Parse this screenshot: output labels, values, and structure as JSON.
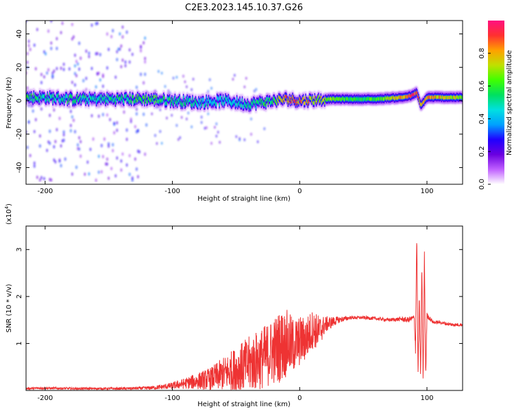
{
  "title": "C2E3.2023.145.10.37.G26",
  "colorbar": {
    "label": "Normalized spectral amplitude",
    "ticks": [
      "0.0",
      "0.2",
      "0.4",
      "0.6",
      "0.8"
    ],
    "tick_values": [
      0.0,
      0.2,
      0.4,
      0.6,
      0.8
    ],
    "range": [
      0,
      1
    ],
    "colormap": [
      "#ffffff",
      "#c060ff",
      "#6a00e0",
      "#2000ff",
      "#00a0ff",
      "#00e0e0",
      "#00e060",
      "#40ff00",
      "#c0e000",
      "#ffa000",
      "#ff3030",
      "#ff1080"
    ]
  },
  "chart_data": [
    {
      "type": "heatmap",
      "xlabel": "Height of straight line (km)",
      "ylabel": "Frequency (Hz)",
      "xlim": [
        -215,
        128
      ],
      "ylim": [
        -50,
        48
      ],
      "xticks": [
        -200,
        -100,
        0,
        100
      ],
      "xtick_labels": [
        "-200",
        "-100",
        "0",
        "100"
      ],
      "yticks": [
        -40,
        -20,
        0,
        20,
        40
      ],
      "ytick_labels": [
        "-40",
        "-20",
        "0",
        "20",
        "40"
      ],
      "grid": false,
      "ridge": {
        "x": [
          -215,
          -200,
          -180,
          -160,
          -140,
          -120,
          -100,
          -80,
          -60,
          -40,
          -20,
          -10,
          0,
          20,
          40,
          60,
          80,
          88,
          92,
          95,
          100,
          128
        ],
        "center_hz": [
          2,
          2,
          1,
          1,
          1,
          1,
          0,
          -1,
          0,
          -2,
          0,
          1,
          0,
          1,
          1,
          1,
          2,
          3,
          5,
          -3,
          2,
          2
        ],
        "amplitude": [
          0.6,
          0.5,
          0.55,
          0.5,
          0.55,
          0.6,
          0.55,
          0.5,
          0.45,
          0.5,
          0.6,
          0.9,
          0.85,
          0.7,
          0.6,
          0.6,
          0.85,
          0.95,
          0.9,
          0.8,
          0.85,
          0.7
        ]
      }
    },
    {
      "type": "line",
      "xlabel": "Height of straight line (km)",
      "ylabel": "SNR (10 * v/v)",
      "y_multiplier": "(x10",
      "y_multiplier_exp": "4",
      "y_multiplier_close": ")",
      "xlim": [
        -215,
        128
      ],
      "ylim": [
        0,
        3.5
      ],
      "xticks": [
        -200,
        -100,
        0,
        100
      ],
      "xtick_labels": [
        "-200",
        "-100",
        "0",
        "100"
      ],
      "yticks": [
        1,
        2,
        3
      ],
      "ytick_labels": [
        "1",
        "2",
        "3"
      ],
      "grid": false,
      "series": [
        {
          "color": "#ee3333",
          "x": [
            -215,
            -200,
            -180,
            -160,
            -140,
            -120,
            -110,
            -100,
            -90,
            -80,
            -70,
            -60,
            -50,
            -40,
            -30,
            -20,
            -15,
            -10,
            -5,
            0,
            5,
            10,
            15,
            20,
            30,
            40,
            50,
            60,
            70,
            80,
            85,
            90,
            91,
            92,
            93,
            94,
            95,
            96,
            97,
            98,
            99,
            100,
            105,
            110,
            115,
            120,
            128
          ],
          "y": [
            0.04,
            0.05,
            0.04,
            0.04,
            0.04,
            0.05,
            0.07,
            0.1,
            0.15,
            0.2,
            0.25,
            0.35,
            0.45,
            0.55,
            0.68,
            0.85,
            0.95,
            1.0,
            0.95,
            1.05,
            1.1,
            1.3,
            1.25,
            1.4,
            1.5,
            1.55,
            1.55,
            1.53,
            1.5,
            1.52,
            1.5,
            1.55,
            0.9,
            3.4,
            0.3,
            2.0,
            0.2,
            2.7,
            0.1,
            2.9,
            0.3,
            1.6,
            1.45,
            1.45,
            1.42,
            1.4,
            1.4
          ],
          "noise": [
            0.02,
            0.02,
            0.02,
            0.02,
            0.02,
            0.03,
            0.04,
            0.06,
            0.1,
            0.15,
            0.2,
            0.3,
            0.4,
            0.5,
            0.55,
            0.6,
            0.65,
            0.6,
            0.5,
            0.45,
            0.4,
            0.35,
            0.3,
            0.15,
            0.06,
            0.03,
            0.03,
            0.03,
            0.03,
            0.04,
            0.05,
            0.05,
            0.1,
            0.1,
            0.1,
            0.1,
            0.1,
            0.1,
            0.1,
            0.1,
            0.1,
            0.05,
            0.03,
            0.03,
            0.03,
            0.03,
            0.03
          ]
        }
      ]
    }
  ]
}
